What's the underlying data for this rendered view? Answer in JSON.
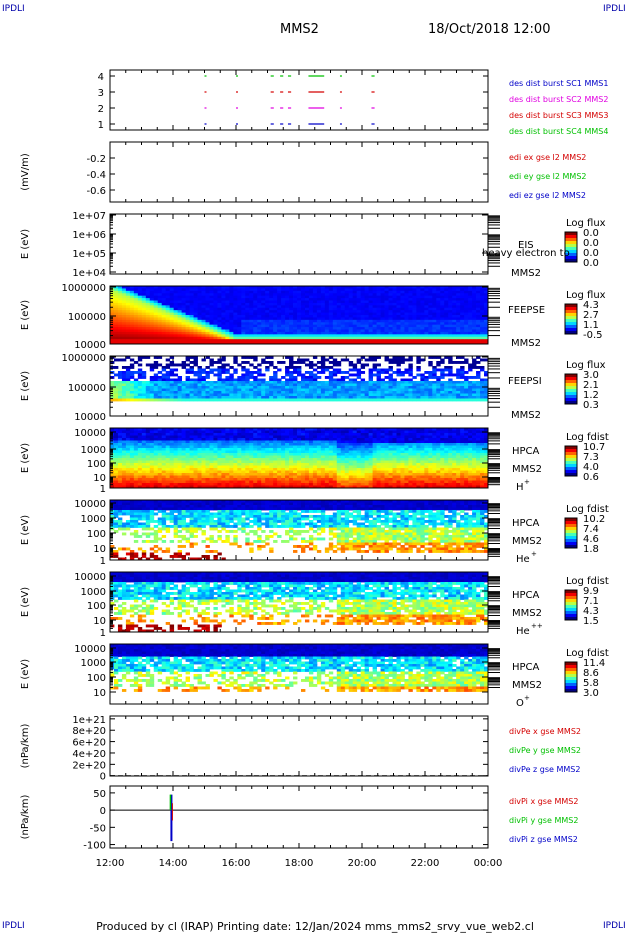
{
  "corners": {
    "tl": "IPDLI",
    "tr": "IPDLI",
    "bl": "IPDLI",
    "br": "IPDLI"
  },
  "header": {
    "spacecraft": "MMS2",
    "datetime": "18/Oct/2018 12:00"
  },
  "footer": {
    "text": "Produced by cl (IRAP)   Printing date: 12/Jan/2024   mms_mms2_srvy_vue_web2.cl"
  },
  "colors": {
    "red": "#d40000",
    "green": "#00c000",
    "blue": "#0000c8",
    "magenta": "#e000e0"
  },
  "chart_data": [
    {
      "id": "burst",
      "type": "scatter",
      "ylabel": "",
      "yticks": [
        "1",
        "2",
        "3",
        "4"
      ],
      "ylim": [
        0.5,
        4.5
      ],
      "xlim_hours": [
        12,
        24
      ],
      "x_ticks": [
        "12:00",
        "14:00",
        "16:00",
        "18:00",
        "20:00",
        "22:00",
        "00:00"
      ],
      "intervals_hours": [
        [
          15.0,
          15.05
        ],
        [
          16.0,
          16.05
        ],
        [
          17.1,
          17.2
        ],
        [
          17.4,
          17.5
        ],
        [
          17.65,
          17.75
        ],
        [
          18.3,
          18.8
        ],
        [
          19.3,
          19.35
        ],
        [
          20.3,
          20.4
        ]
      ],
      "series": [
        {
          "name": "des dist burst SC1 MMS1",
          "level": 4,
          "color": "green"
        },
        {
          "name": "des dist burst SC2 MMS2",
          "level": 3,
          "color": "red"
        },
        {
          "name": "des dist burst SC3 MMS3",
          "level": 2,
          "color": "magenta"
        },
        {
          "name": "des dist burst SC4 MMS4",
          "level": 1,
          "color": "blue"
        }
      ],
      "legend_colors": [
        "blue",
        "magenta",
        "red",
        "green"
      ]
    },
    {
      "id": "edi",
      "type": "line",
      "ylabel": "(mV/m)",
      "yticks": [
        "-0.2",
        "-0.4",
        "-0.6"
      ],
      "tick_values": [
        -0.2,
        -0.4,
        -0.6
      ],
      "ylim": [
        -0.75,
        0.0
      ],
      "series": [
        {
          "name": "edi ex gse l2 MMS2",
          "color": "red"
        },
        {
          "name": "edi ey gse l2 MMS2",
          "color": "green"
        },
        {
          "name": "edi ez gse l2 MMS2",
          "color": "blue"
        }
      ]
    },
    {
      "id": "eis",
      "type": "heatmap",
      "ylabel": "E (eV)",
      "yscale": "log",
      "yticks": [
        "1e+07",
        "1e+06",
        "1e+05",
        "1e+04"
      ],
      "instrument": "EIS",
      "species": "heavy electron to",
      "sc": "MMS2",
      "colorbar_title": "Log flux",
      "colorbar_ticks": [
        "0.0",
        "0.0",
        "0.0",
        "0.0"
      ],
      "pattern": "empty"
    },
    {
      "id": "feepse",
      "type": "heatmap",
      "ylabel": "E (eV)",
      "yscale": "log",
      "yticks": [
        "1000000",
        "100000",
        "10000"
      ],
      "instrument": "FEEPSE",
      "sc": "MMS2",
      "colorbar_title": "Log flux",
      "colorbar_ticks": [
        "4.3",
        "2.7",
        "1.1",
        "-0.5"
      ],
      "pattern": "feepse"
    },
    {
      "id": "feepsi",
      "type": "heatmap",
      "ylabel": "E (eV)",
      "yscale": "log",
      "yticks": [
        "1000000",
        "100000",
        "10000"
      ],
      "instrument": "FEEPSI",
      "sc": "MMS2",
      "colorbar_title": "Log flux",
      "colorbar_ticks": [
        "3.0",
        "2.1",
        "1.2",
        "0.3"
      ],
      "pattern": "feepsi"
    },
    {
      "id": "hpca_h",
      "type": "heatmap",
      "ylabel": "E (eV)",
      "yscale": "log",
      "yticks": [
        "10000",
        "1000",
        "100",
        "10",
        "1"
      ],
      "instrument": "HPCA",
      "sc": "MMS2",
      "species": "H",
      "species_sup": "+",
      "colorbar_title": "Log fdist",
      "colorbar_ticks": [
        "10.7",
        "7.3",
        "4.0",
        "0.6"
      ],
      "pattern": "hplus"
    },
    {
      "id": "hpca_he1",
      "type": "heatmap",
      "ylabel": "E (eV)",
      "yscale": "log",
      "yticks": [
        "10000",
        "1000",
        "100",
        "10",
        "1"
      ],
      "instrument": "HPCA",
      "sc": "MMS2",
      "species": "He",
      "species_sup": "+",
      "colorbar_title": "Log fdist",
      "colorbar_ticks": [
        "10.2",
        "7.4",
        "4.6",
        "1.8"
      ],
      "pattern": "heplus"
    },
    {
      "id": "hpca_he2",
      "type": "heatmap",
      "ylabel": "E (eV)",
      "yscale": "log",
      "yticks": [
        "10000",
        "1000",
        "100",
        "10",
        "1"
      ],
      "instrument": "HPCA",
      "sc": "MMS2",
      "species": "He",
      "species_sup": "++",
      "colorbar_title": "Log fdist",
      "colorbar_ticks": [
        "9.9",
        "7.1",
        "4.3",
        "1.5"
      ],
      "pattern": "heplusplus"
    },
    {
      "id": "hpca_o",
      "type": "heatmap",
      "ylabel": "E (eV)",
      "yscale": "log",
      "yticks": [
        "10000",
        "1000",
        "100",
        "10"
      ],
      "instrument": "HPCA",
      "sc": "MMS2",
      "species": "O",
      "species_sup": "+",
      "colorbar_title": "Log fdist",
      "colorbar_ticks": [
        "11.4",
        "8.6",
        "5.8",
        "3.0"
      ],
      "pattern": "oplus"
    },
    {
      "id": "divpe",
      "type": "line",
      "ylabel": "(nPa/km)",
      "yticks": [
        "1e+21",
        "8e+20",
        "6e+20",
        "4e+20",
        "2e+20",
        "0"
      ],
      "tick_values": [
        1e+21,
        8e+20,
        6e+20,
        4e+20,
        2e+20,
        0
      ],
      "ylim": [
        -5e+18,
        1.05e+21
      ],
      "zero_line": "dashed",
      "series": [
        {
          "name": "divPe x gse MMS2",
          "color": "red"
        },
        {
          "name": "divPe y gse MMS2",
          "color": "green"
        },
        {
          "name": "divPe z gse MMS2",
          "color": "blue"
        }
      ]
    },
    {
      "id": "divpi",
      "type": "line",
      "ylabel": "(nPa/km)",
      "yticks": [
        "50",
        "0",
        "-50",
        "-100"
      ],
      "tick_values": [
        50,
        0,
        -50,
        -100
      ],
      "ylim": [
        -110,
        70
      ],
      "zero_line": "solid",
      "spike": {
        "time_hours": 13.95,
        "peak": 45,
        "trough": -90
      },
      "series": [
        {
          "name": "divPi x gse MMS2",
          "color": "red"
        },
        {
          "name": "divPi y gse MMS2",
          "color": "green"
        },
        {
          "name": "divPi z gse MMS2",
          "color": "blue"
        }
      ]
    }
  ]
}
